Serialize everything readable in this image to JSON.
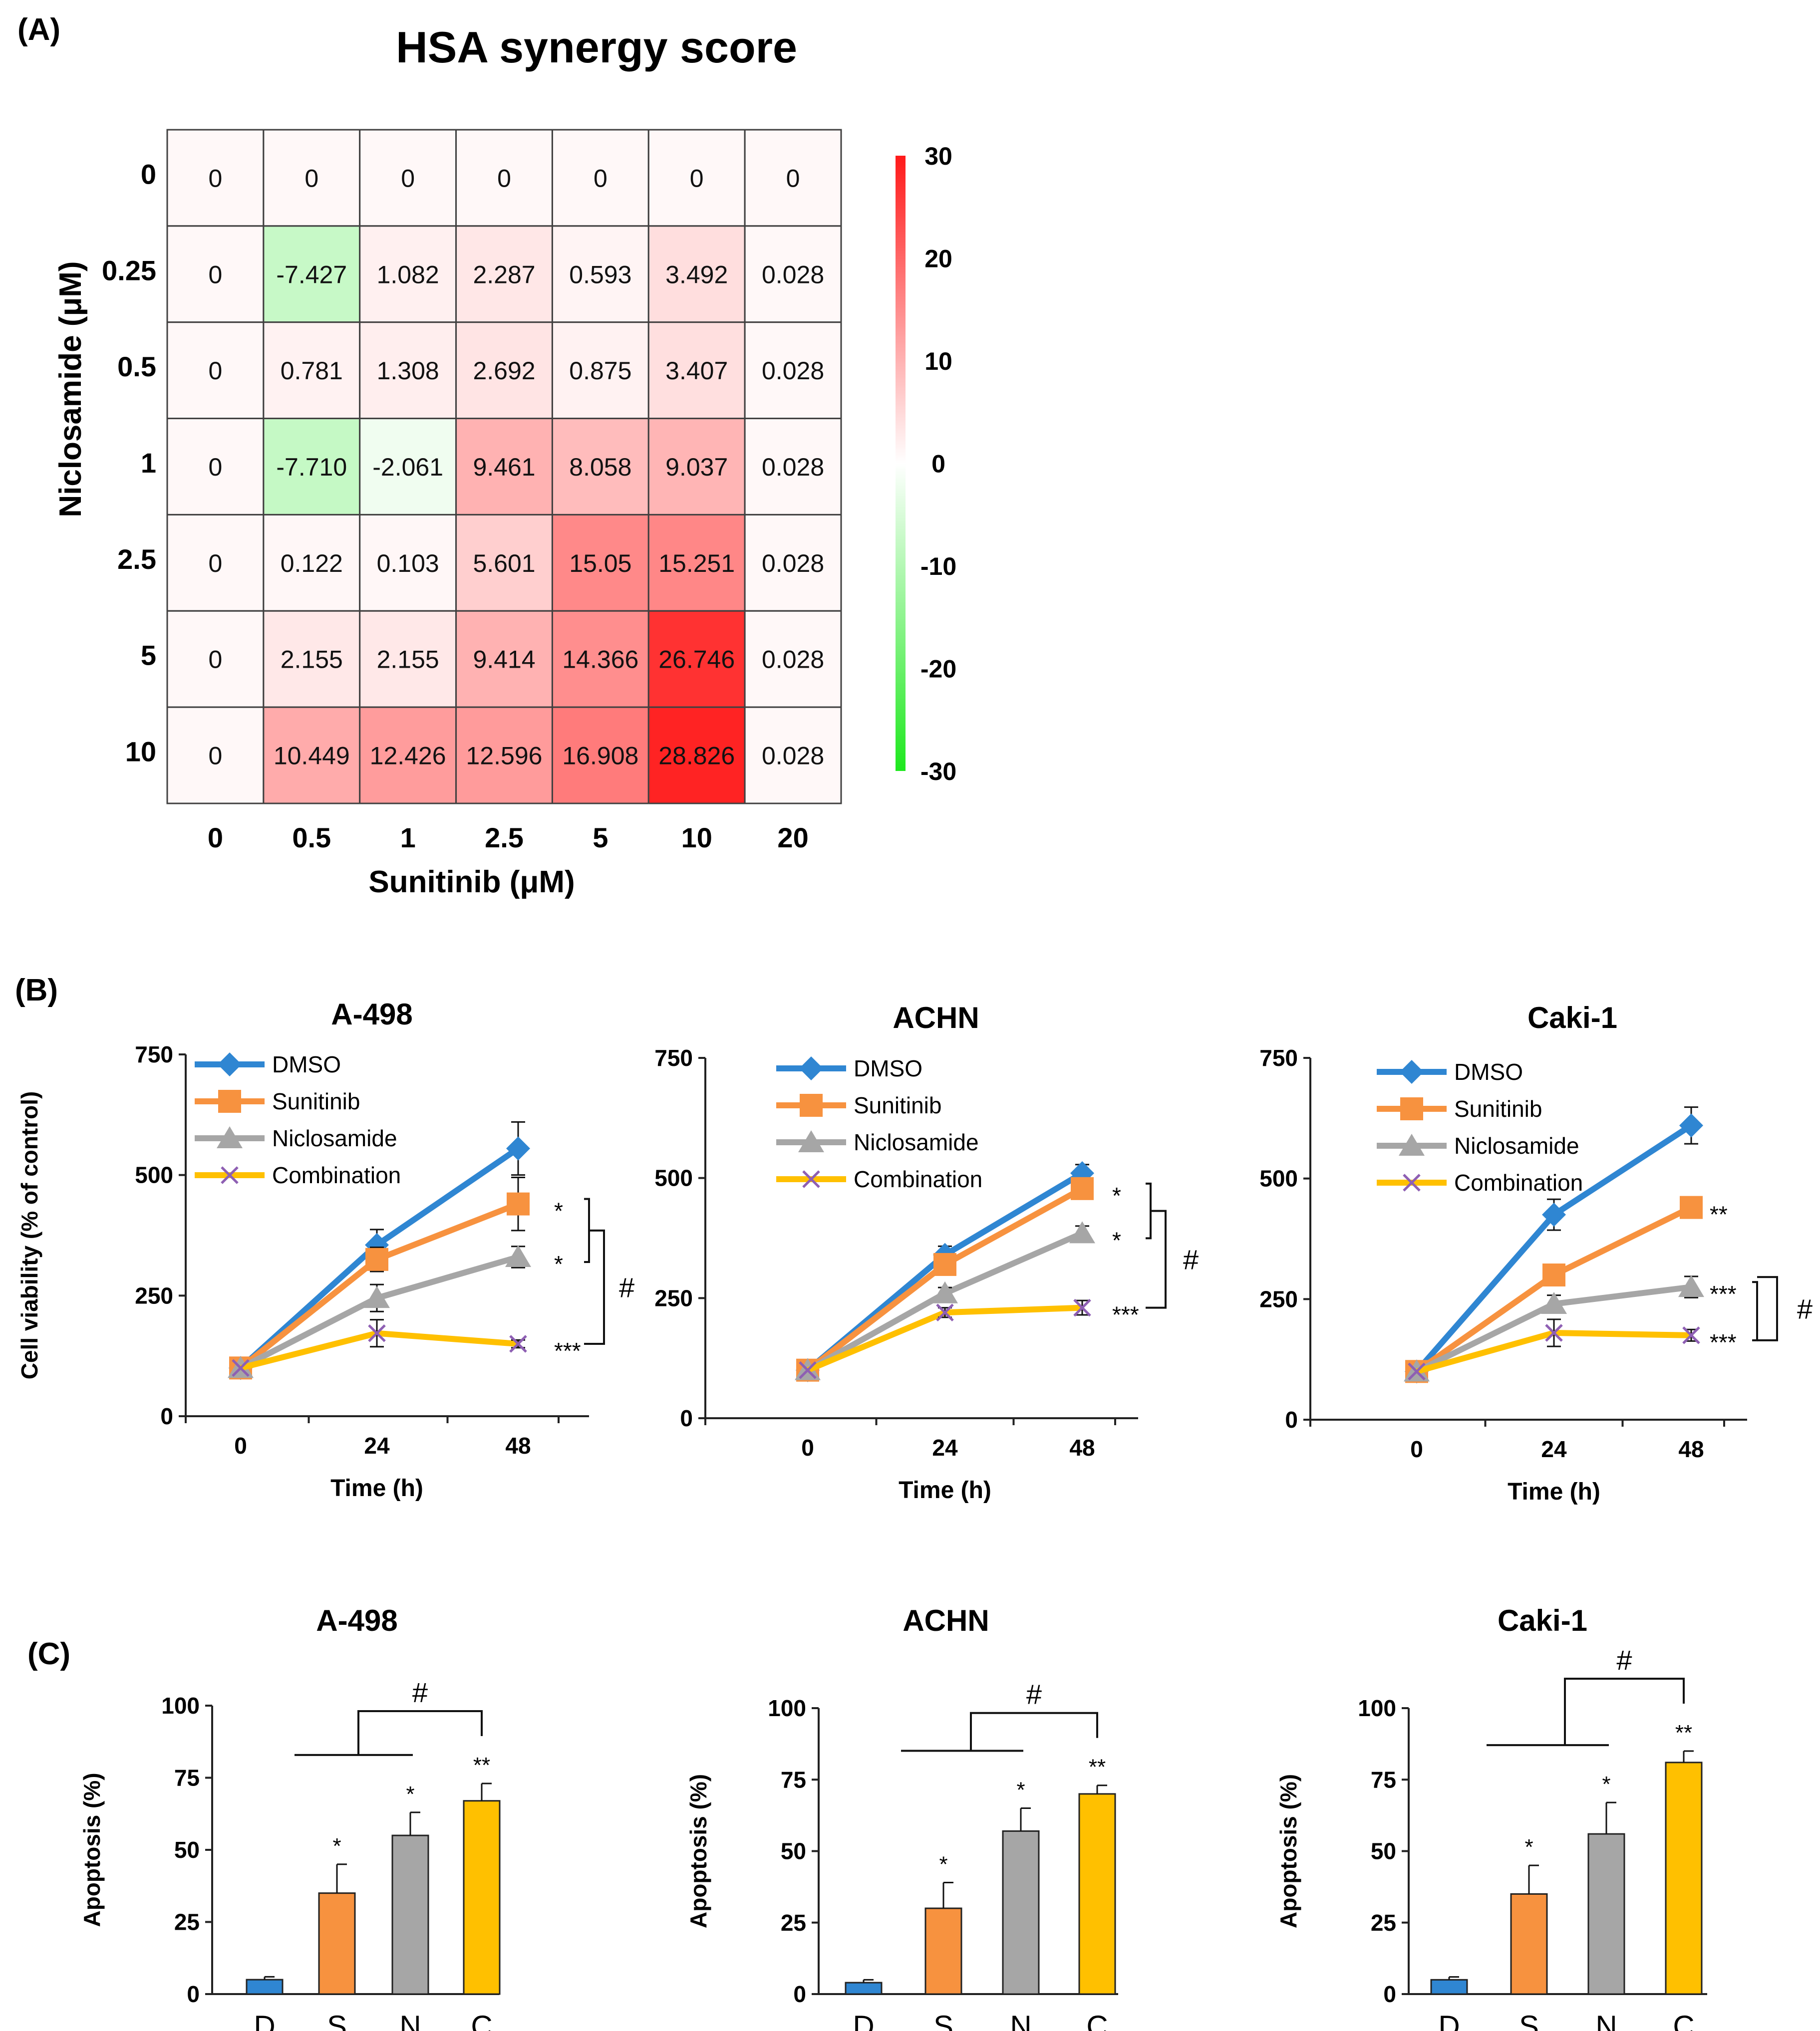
{
  "panel_labels": {
    "a": "(A)",
    "b": "(B)",
    "c": "(C)"
  },
  "colors": {
    "DMSO": "#2f86d2",
    "Sunitinib": "#f7923f",
    "Niclosamide": "#a6a6a6",
    "Combination": "#ffc000",
    "cross": "#8e5fb3",
    "heat_high": "#ff1a1a",
    "heat_low": "#1ee81e",
    "heat_mid": "#ffffff"
  },
  "chart_data": [
    {
      "id": "heatmap",
      "type": "heatmap",
      "title": "HSA synergy score",
      "xlabel": "Sunitinib (μM)",
      "ylabel": "Niclosamide (μM)",
      "x_ticks": [
        "0",
        "0.5",
        "1",
        "2.5",
        "5",
        "10",
        "20"
      ],
      "y_ticks": [
        "0",
        "0.25",
        "0.5",
        "1",
        "2.5",
        "5",
        "10"
      ],
      "values": [
        [
          0,
          0,
          0,
          0,
          0,
          0,
          0
        ],
        [
          0,
          -7.427,
          1.082,
          2.287,
          0.593,
          3.492,
          0.028
        ],
        [
          0,
          0.781,
          1.308,
          2.692,
          0.875,
          3.407,
          0.028
        ],
        [
          0,
          -7.71,
          -2.061,
          9.461,
          8.058,
          9.037,
          0.028
        ],
        [
          0,
          0.122,
          0.103,
          5.601,
          15.05,
          15.251,
          0.028
        ],
        [
          0,
          2.155,
          2.155,
          9.414,
          14.366,
          26.746,
          0.028
        ],
        [
          0,
          10.449,
          12.426,
          12.596,
          16.908,
          28.826,
          0.028
        ]
      ],
      "cell_labels": [
        [
          "0",
          "0",
          "0",
          "0",
          "0",
          "0",
          "0"
        ],
        [
          "0",
          "-7.427",
          "1.082",
          "2.287",
          "0.593",
          "3.492",
          "0.028"
        ],
        [
          "0",
          "0.781",
          "1.308",
          "2.692",
          "0.875",
          "3.407",
          "0.028"
        ],
        [
          "0",
          "-7.710",
          "-2.061",
          "9.461",
          "8.058",
          "9.037",
          "0.028"
        ],
        [
          "0",
          "0.122",
          "0.103",
          "5.601",
          "15.05",
          "15.251",
          "0.028"
        ],
        [
          "0",
          "2.155",
          "2.155",
          "9.414",
          "14.366",
          "26.746",
          "0.028"
        ],
        [
          "0",
          "10.449",
          "12.426",
          "12.596",
          "16.908",
          "28.826",
          "0.028"
        ]
      ],
      "colorbar": {
        "range": [
          -30,
          30
        ],
        "ticks": [
          "30",
          "20",
          "10",
          "0",
          "-10",
          "-20",
          "-30"
        ]
      }
    },
    {
      "id": "line-a498",
      "type": "line",
      "title": "A-498",
      "xlabel": "Time (h)",
      "ylabel": "Cell viability (% of control)",
      "x": [
        0,
        24,
        48
      ],
      "x_ticks": [
        "0",
        "24",
        "48"
      ],
      "ylim": [
        0,
        750
      ],
      "y_ticks": [
        "0",
        "250",
        "500",
        "750"
      ],
      "legend": true,
      "series": [
        {
          "name": "DMSO",
          "values": [
            100,
            355,
            555
          ],
          "errors": [
            0,
            32,
            55
          ]
        },
        {
          "name": "Sunitinib",
          "values": [
            100,
            325,
            440
          ],
          "errors": [
            0,
            25,
            55
          ]
        },
        {
          "name": "Niclosamide",
          "values": [
            100,
            245,
            330
          ],
          "errors": [
            0,
            28,
            22
          ]
        },
        {
          "name": "Combination",
          "values": [
            100,
            172,
            150
          ],
          "errors": [
            0,
            28,
            8
          ]
        }
      ],
      "annotations": [
        {
          "text": "*",
          "series": "Sunitinib"
        },
        {
          "text": "*",
          "series": "Niclosamide"
        },
        {
          "text": "***",
          "series": "Combination"
        }
      ],
      "bracket_inner": [
        "Sunitinib",
        "Niclosamide"
      ],
      "bracket_label": "#"
    },
    {
      "id": "line-achn",
      "type": "line",
      "title": "ACHN",
      "xlabel": "Time (h)",
      "ylabel": "",
      "x": [
        0,
        24,
        48
      ],
      "x_ticks": [
        "0",
        "24",
        "48"
      ],
      "ylim": [
        0,
        750
      ],
      "y_ticks": [
        "0",
        "250",
        "500",
        "750"
      ],
      "legend": true,
      "series": [
        {
          "name": "DMSO",
          "values": [
            100,
            340,
            510
          ],
          "errors": [
            0,
            18,
            18
          ]
        },
        {
          "name": "Sunitinib",
          "values": [
            100,
            320,
            478
          ],
          "errors": [
            0,
            15,
            15
          ]
        },
        {
          "name": "Niclosamide",
          "values": [
            100,
            260,
            385
          ],
          "errors": [
            0,
            12,
            15
          ]
        },
        {
          "name": "Combination",
          "values": [
            100,
            220,
            230
          ],
          "errors": [
            0,
            10,
            15
          ]
        }
      ],
      "annotations": [
        {
          "text": "*",
          "series": "Sunitinib"
        },
        {
          "text": "*",
          "series": "Niclosamide"
        },
        {
          "text": "***",
          "series": "Combination"
        }
      ],
      "bracket_inner": [
        "Sunitinib",
        "Niclosamide"
      ],
      "bracket_label": "#"
    },
    {
      "id": "line-caki1",
      "type": "line",
      "title": "Caki-1",
      "xlabel": "Time (h)",
      "ylabel": "",
      "x": [
        0,
        24,
        48
      ],
      "x_ticks": [
        "0",
        "24",
        "48"
      ],
      "ylim": [
        0,
        750
      ],
      "y_ticks": [
        "0",
        "250",
        "500",
        "750"
      ],
      "legend": true,
      "series": [
        {
          "name": "DMSO",
          "values": [
            100,
            425,
            610
          ],
          "errors": [
            0,
            32,
            38
          ]
        },
        {
          "name": "Sunitinib",
          "values": [
            100,
            300,
            440
          ],
          "errors": [
            0,
            18,
            12
          ]
        },
        {
          "name": "Niclosamide",
          "values": [
            100,
            240,
            275
          ],
          "errors": [
            0,
            18,
            22
          ]
        },
        {
          "name": "Combination",
          "values": [
            100,
            180,
            175
          ],
          "errors": [
            0,
            28,
            12
          ]
        }
      ],
      "annotations": [
        {
          "text": "**",
          "series": "Sunitinib"
        },
        {
          "text": "***",
          "series": "Niclosamide"
        },
        {
          "text": "***",
          "series": "Combination"
        }
      ],
      "bracket_inner": [
        "Niclosamide",
        "Combination"
      ],
      "bracket_label": "#"
    },
    {
      "id": "bar-a498",
      "type": "bar",
      "title": "A-498",
      "ylabel": "Apoptosis (%)",
      "categories": [
        "D",
        "S",
        "N",
        "C"
      ],
      "values": [
        5,
        35,
        55,
        67
      ],
      "errors": [
        1,
        10,
        8,
        6
      ],
      "ylim": [
        0,
        100
      ],
      "y_ticks": [
        "0",
        "25",
        "50",
        "75",
        "100"
      ],
      "stars": [
        "",
        "*",
        "*",
        "**"
      ],
      "bracket_label": "#"
    },
    {
      "id": "bar-achn",
      "type": "bar",
      "title": "ACHN",
      "ylabel": "Apoptosis (%)",
      "categories": [
        "D",
        "S",
        "N",
        "C"
      ],
      "values": [
        4,
        30,
        57,
        70
      ],
      "errors": [
        1,
        9,
        8,
        3
      ],
      "ylim": [
        0,
        100
      ],
      "y_ticks": [
        "0",
        "25",
        "50",
        "75",
        "100"
      ],
      "stars": [
        "",
        "*",
        "*",
        "**"
      ],
      "bracket_label": "#"
    },
    {
      "id": "bar-caki1",
      "type": "bar",
      "title": "Caki-1",
      "ylabel": "Apoptosis (%)",
      "categories": [
        "D",
        "S",
        "N",
        "C"
      ],
      "values": [
        5,
        35,
        56,
        81
      ],
      "errors": [
        1,
        10,
        11,
        4
      ],
      "ylim": [
        0,
        100
      ],
      "y_ticks": [
        "0",
        "25",
        "50",
        "75",
        "100"
      ],
      "stars": [
        "",
        "*",
        "*",
        "**"
      ],
      "bracket_label": "#"
    }
  ]
}
